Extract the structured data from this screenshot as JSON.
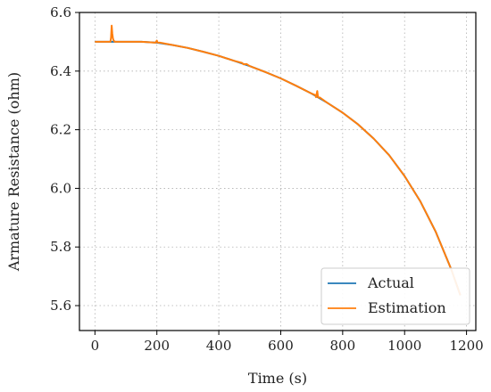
{
  "chart_data": {
    "type": "line",
    "xlabel": "Time (s)",
    "ylabel": "Armature Resistance (ohm)",
    "xlim": [
      -50,
      1230
    ],
    "ylim": [
      5.515,
      6.6
    ],
    "x_ticks": [
      0,
      200,
      400,
      600,
      800,
      1000,
      1200
    ],
    "y_ticks": [
      5.6,
      5.8,
      6.0,
      6.2,
      6.4,
      6.6
    ],
    "grid": true,
    "legend_position": "lower-right",
    "series": [
      {
        "name": "Actual",
        "color": "#1f77b4",
        "x": [
          0,
          100,
          150,
          200,
          250,
          300,
          350,
          400,
          450,
          500,
          550,
          600,
          650,
          700,
          750,
          800,
          850,
          900,
          950,
          1000,
          1050,
          1100,
          1150,
          1180
        ],
        "y": [
          6.5,
          6.5,
          6.5,
          6.497,
          6.489,
          6.479,
          6.466,
          6.452,
          6.435,
          6.417,
          6.397,
          6.375,
          6.35,
          6.323,
          6.292,
          6.258,
          6.218,
          6.17,
          6.113,
          6.042,
          5.957,
          5.853,
          5.725,
          5.635
        ]
      },
      {
        "name": "Estimation",
        "color": "#ff7f0e",
        "x": [
          0,
          50,
          52,
          54,
          56,
          58,
          60,
          64,
          68,
          100,
          150,
          196,
          198,
          200,
          202,
          204,
          206,
          210,
          250,
          300,
          350,
          400,
          450,
          475,
          480,
          490,
          500,
          550,
          600,
          650,
          700,
          712,
          714,
          716,
          718,
          720,
          722,
          726,
          750,
          800,
          850,
          900,
          950,
          1000,
          1050,
          1100,
          1150,
          1180
        ],
        "y": [
          6.5,
          6.5,
          6.515,
          6.555,
          6.528,
          6.512,
          6.505,
          6.5,
          6.5,
          6.5,
          6.5,
          6.497,
          6.501,
          6.504,
          6.498,
          6.497,
          6.497,
          6.497,
          6.489,
          6.479,
          6.466,
          6.452,
          6.435,
          6.428,
          6.423,
          6.424,
          6.417,
          6.397,
          6.375,
          6.35,
          6.323,
          6.318,
          6.311,
          6.322,
          6.332,
          6.314,
          6.309,
          6.31,
          6.292,
          6.258,
          6.218,
          6.17,
          6.113,
          6.042,
          5.957,
          5.853,
          5.725,
          5.635
        ]
      }
    ]
  }
}
